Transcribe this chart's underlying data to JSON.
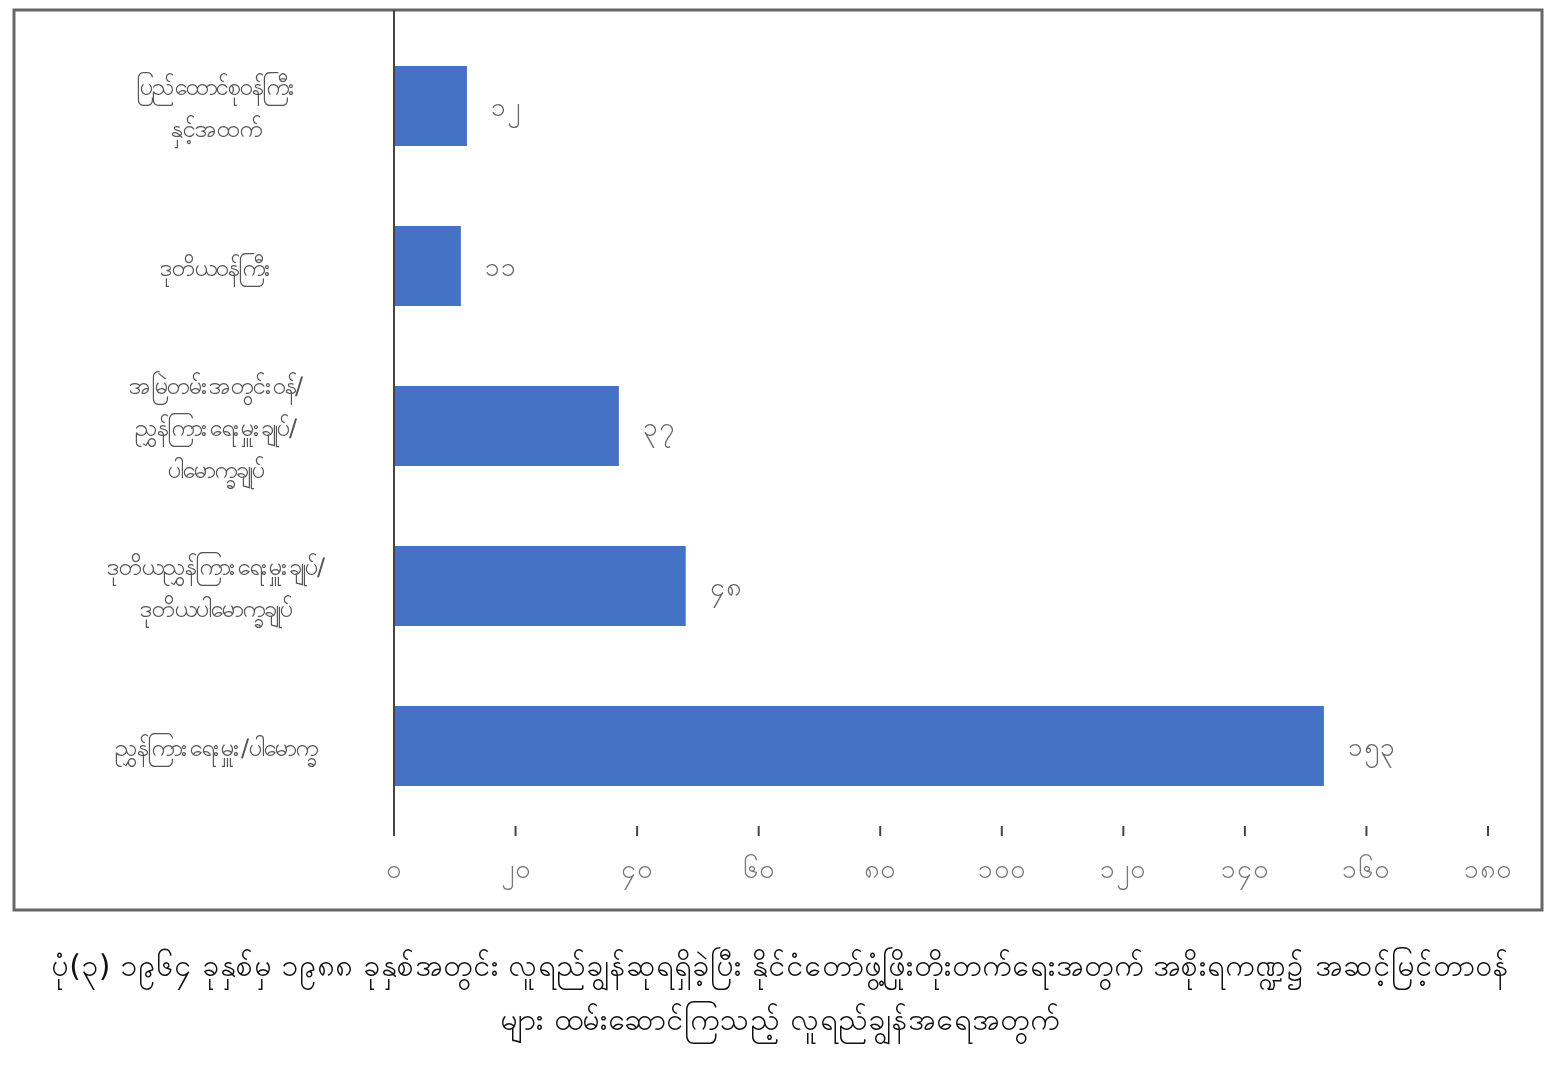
{
  "chart_data": {
    "type": "bar",
    "orientation": "horizontal",
    "categories": [
      "ပြည်ထောင်စုဝန်ကြီး နှင့်အထက်",
      "ဒုတိယဝန်ကြီး",
      "အမြဲတမ်းအတွင်းဝန်/ ညွှန်ကြားရေးမှူးချုပ်/ ပါမောက္ခချုပ်",
      "ဒုတိယညွှန်ကြားရေးမှူးချုပ်/ ဒုတိယပါမောက္ခချုပ်",
      "ညွှန်ကြားရေးမှူး/ပါမောက္ခ"
    ],
    "values": [
      12,
      11,
      37,
      48,
      153
    ],
    "value_labels": [
      "၁၂",
      "၁၁",
      "၃၇",
      "၄၈",
      "၁၅၃"
    ],
    "color": "#4472c4",
    "xlim": [
      0,
      180
    ],
    "xticks": [
      {
        "value": 0,
        "label": "၀"
      },
      {
        "value": 20,
        "label": "၂၀"
      },
      {
        "value": 40,
        "label": "၄၀"
      },
      {
        "value": 60,
        "label": "၆၀"
      },
      {
        "value": 80,
        "label": "၈၀"
      },
      {
        "value": 100,
        "label": "၁၀၀"
      },
      {
        "value": 120,
        "label": "၁၂၀"
      },
      {
        "value": 140,
        "label": "၁၄၀"
      },
      {
        "value": 160,
        "label": "၁၆၀"
      },
      {
        "value": 180,
        "label": "၁၈၀"
      }
    ],
    "annotations": [
      "ပုံ(၃) ၁၉၆၄ ခုနှစ်မှ ၁၉၈၈ ခုနှစ်အတွင်း လူရည်ချွန်ဆုရရှိခဲ့ပြီး နိုင်ငံတော်ဖွံ့ဖြိုးတိုးတက်ရေးအတွက် အစိုးရကဏ္ဍ၌ အဆင့်မြင့်တာဝန်များ ထမ်းဆောင်ကြသည့် လူရည်ချွန်အရေအတွက်"
    ]
  }
}
